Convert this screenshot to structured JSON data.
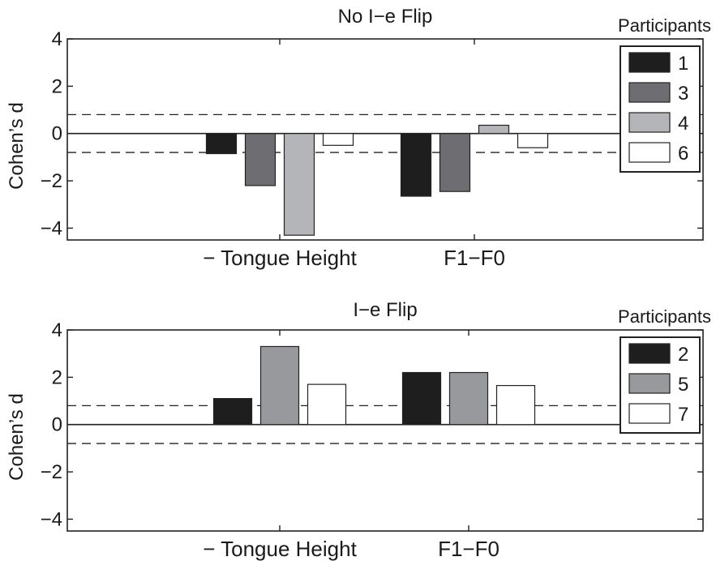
{
  "chart_data": [
    {
      "type": "bar",
      "title": "No I−e Flip",
      "xlabel": "",
      "ylabel": "Cohen’s d",
      "ylim": [
        -4.5,
        4
      ],
      "yticks": [
        4,
        2,
        0,
        -2,
        -4
      ],
      "ytick_labels": [
        "4",
        "2",
        "0",
        "−2",
        "−4"
      ],
      "categories": [
        "− Tongue Height",
        "F1−F0"
      ],
      "reference_lines": [
        0.8,
        -0.8
      ],
      "reference_line_style": "dashed",
      "zero_line": true,
      "legend_title": "Participants",
      "legend_position": "top-right",
      "series": [
        {
          "name": "1",
          "color": "#1e1e1e",
          "values": [
            -0.85,
            -2.65
          ]
        },
        {
          "name": "3",
          "color": "#6e6e72",
          "values": [
            -2.2,
            -2.45
          ]
        },
        {
          "name": "4",
          "color": "#b4b5b8",
          "values": [
            -4.3,
            0.35
          ]
        },
        {
          "name": "6",
          "color": "#ffffff",
          "values": [
            -0.5,
            -0.6
          ]
        }
      ]
    },
    {
      "type": "bar",
      "title": "I−e Flip",
      "xlabel": "",
      "ylabel": "Cohen’s d",
      "ylim": [
        -4.5,
        4
      ],
      "yticks": [
        4,
        2,
        0,
        -2,
        -4
      ],
      "ytick_labels": [
        "4",
        "2",
        "0",
        "−2",
        "−4"
      ],
      "categories": [
        "− Tongue Height",
        "F1−F0"
      ],
      "reference_lines": [
        0.8,
        -0.8
      ],
      "reference_line_style": "dashed",
      "zero_line": true,
      "legend_title": "Participants",
      "legend_position": "top-right",
      "series": [
        {
          "name": "2",
          "color": "#1e1e1e",
          "values": [
            1.1,
            2.2
          ]
        },
        {
          "name": "5",
          "color": "#98999c",
          "values": [
            3.3,
            2.2
          ]
        },
        {
          "name": "7",
          "color": "#ffffff",
          "values": [
            1.7,
            1.65
          ]
        }
      ]
    }
  ]
}
